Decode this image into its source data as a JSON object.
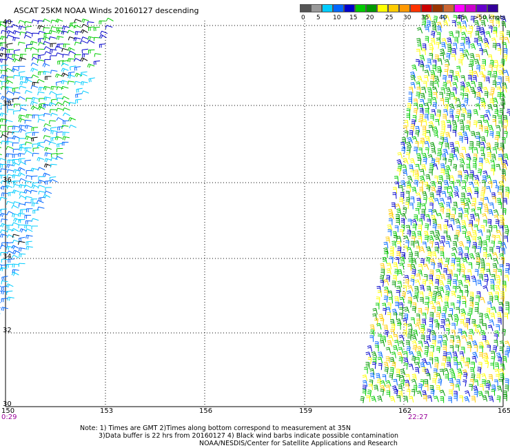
{
  "title": "ASCAT 25KM NOAA Winds 20160127 descending",
  "legend": {
    "colors": [
      "#555555",
      "#999999",
      "#00ccff",
      "#0066ff",
      "#0000cc",
      "#00cc00",
      "#009900",
      "#ffff00",
      "#ffcc00",
      "#ff9900",
      "#ff3300",
      "#cc0000",
      "#993300",
      "#cc6633",
      "#ff00ff",
      "#cc00cc",
      "#6600cc",
      "#330099"
    ],
    "labels": [
      "0",
      "5",
      "10",
      "15",
      "20",
      "25",
      "30",
      "35",
      "40",
      "45",
      ">50 knots"
    ]
  },
  "axes": {
    "latitudes": [
      "40",
      "38",
      "36",
      "34",
      "32",
      "30"
    ],
    "longitudes": [
      "150",
      "153",
      "156",
      "159",
      "162",
      "165"
    ]
  },
  "times": {
    "left": "0:29",
    "right": "22:27",
    "color": "#990099"
  },
  "notes": [
    "Note: 1) Times are GMT 2)Times along bottom correspond to measurement at 35N",
    "3)Data buffer is 22 hrs from 20160127 4) Black wind barbs indicate possible contamination",
    "NOAA/NESDIS/Center for Satellite Applications and Research"
  ],
  "swaths": {
    "west_colors": [
      "#0000cc",
      "#0066ff",
      "#00ccff",
      "#00cc00",
      "#009900",
      "#000000"
    ],
    "east_colors": [
      "#ffff00",
      "#ffcc00",
      "#00cc00",
      "#009900",
      "#0000cc",
      "#0066ff"
    ]
  }
}
